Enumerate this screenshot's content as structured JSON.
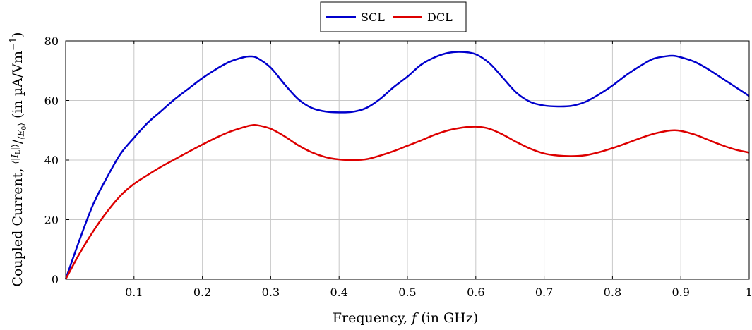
{
  "chart_data": {
    "type": "line",
    "title": "",
    "xlabel": {
      "prefix": "Frequency, ",
      "var": "f",
      "suffix": "  (in GHz)"
    },
    "ylabel": {
      "prefix": "Coupled Current, ",
      "num": "⟨|I",
      "num_sub": "L",
      "num_close": "|⟩",
      "den": "⟨E",
      "den_sub": "0",
      "den_close": "⟩",
      "units": " (in µA/Vm",
      "units_sup": "−1",
      "units_close": ")"
    },
    "xlim": [
      0,
      1
    ],
    "ylim": [
      0,
      80
    ],
    "x_ticks": [
      0.1,
      0.2,
      0.3,
      0.4,
      0.5,
      0.6,
      0.7,
      0.8,
      0.9,
      1
    ],
    "x_tick_labels": [
      "0.1",
      "0.2",
      "0.3",
      "0.4",
      "0.5",
      "0.6",
      "0.7",
      "0.8",
      "0.9",
      "1"
    ],
    "y_ticks": [
      0,
      20,
      40,
      60,
      80
    ],
    "y_tick_labels": [
      "0",
      "20",
      "40",
      "60",
      "80"
    ],
    "grid": true,
    "legend_position": "top-center",
    "series": [
      {
        "name": "SCL",
        "color": "#0000cc",
        "x": [
          0.0,
          0.02,
          0.04,
          0.06,
          0.08,
          0.1,
          0.12,
          0.14,
          0.16,
          0.18,
          0.2,
          0.22,
          0.24,
          0.26,
          0.27,
          0.28,
          0.3,
          0.32,
          0.34,
          0.36,
          0.38,
          0.4,
          0.42,
          0.44,
          0.46,
          0.48,
          0.5,
          0.52,
          0.54,
          0.56,
          0.58,
          0.6,
          0.62,
          0.64,
          0.66,
          0.68,
          0.7,
          0.72,
          0.74,
          0.76,
          0.78,
          0.8,
          0.82,
          0.84,
          0.86,
          0.88,
          0.89,
          0.9,
          0.92,
          0.94,
          0.96,
          0.98,
          1.0
        ],
        "y": [
          0,
          13,
          25,
          34,
          42,
          47.5,
          52.5,
          56.5,
          60.5,
          64,
          67.5,
          70.5,
          73,
          74.5,
          74.8,
          74.3,
          71,
          65.5,
          60.5,
          57.5,
          56.3,
          56,
          56.2,
          57.5,
          60.5,
          64.5,
          68,
          72,
          74.5,
          76,
          76.3,
          75.5,
          72.5,
          67.5,
          62.5,
          59.5,
          58.3,
          58,
          58.2,
          59.5,
          62,
          65,
          68.5,
          71.5,
          74,
          74.9,
          75,
          74.5,
          73,
          70.5,
          67.5,
          64.5,
          61.5
        ]
      },
      {
        "name": "DCL",
        "color": "#dd0000",
        "x": [
          0.0,
          0.02,
          0.04,
          0.06,
          0.08,
          0.1,
          0.12,
          0.14,
          0.16,
          0.18,
          0.2,
          0.22,
          0.24,
          0.26,
          0.27,
          0.28,
          0.3,
          0.32,
          0.34,
          0.36,
          0.38,
          0.4,
          0.42,
          0.44,
          0.46,
          0.48,
          0.5,
          0.52,
          0.54,
          0.56,
          0.58,
          0.6,
          0.62,
          0.64,
          0.66,
          0.68,
          0.7,
          0.72,
          0.74,
          0.76,
          0.78,
          0.8,
          0.82,
          0.84,
          0.86,
          0.88,
          0.89,
          0.9,
          0.92,
          0.94,
          0.96,
          0.98,
          1.0
        ],
        "y": [
          0,
          8.5,
          16,
          22.5,
          28,
          32,
          35,
          37.8,
          40.3,
          42.8,
          45.2,
          47.5,
          49.5,
          51,
          51.6,
          51.7,
          50.5,
          48,
          45,
          42.6,
          41,
          40.2,
          40,
          40.3,
          41.5,
          43,
          44.8,
          46.6,
          48.5,
          50,
          50.9,
          51.2,
          50.5,
          48.5,
          46,
          43.8,
          42.2,
          41.5,
          41.3,
          41.6,
          42.6,
          44,
          45.6,
          47.3,
          48.8,
          49.8,
          50,
          49.8,
          48.6,
          46.8,
          45,
          43.5,
          42.5
        ]
      }
    ]
  }
}
